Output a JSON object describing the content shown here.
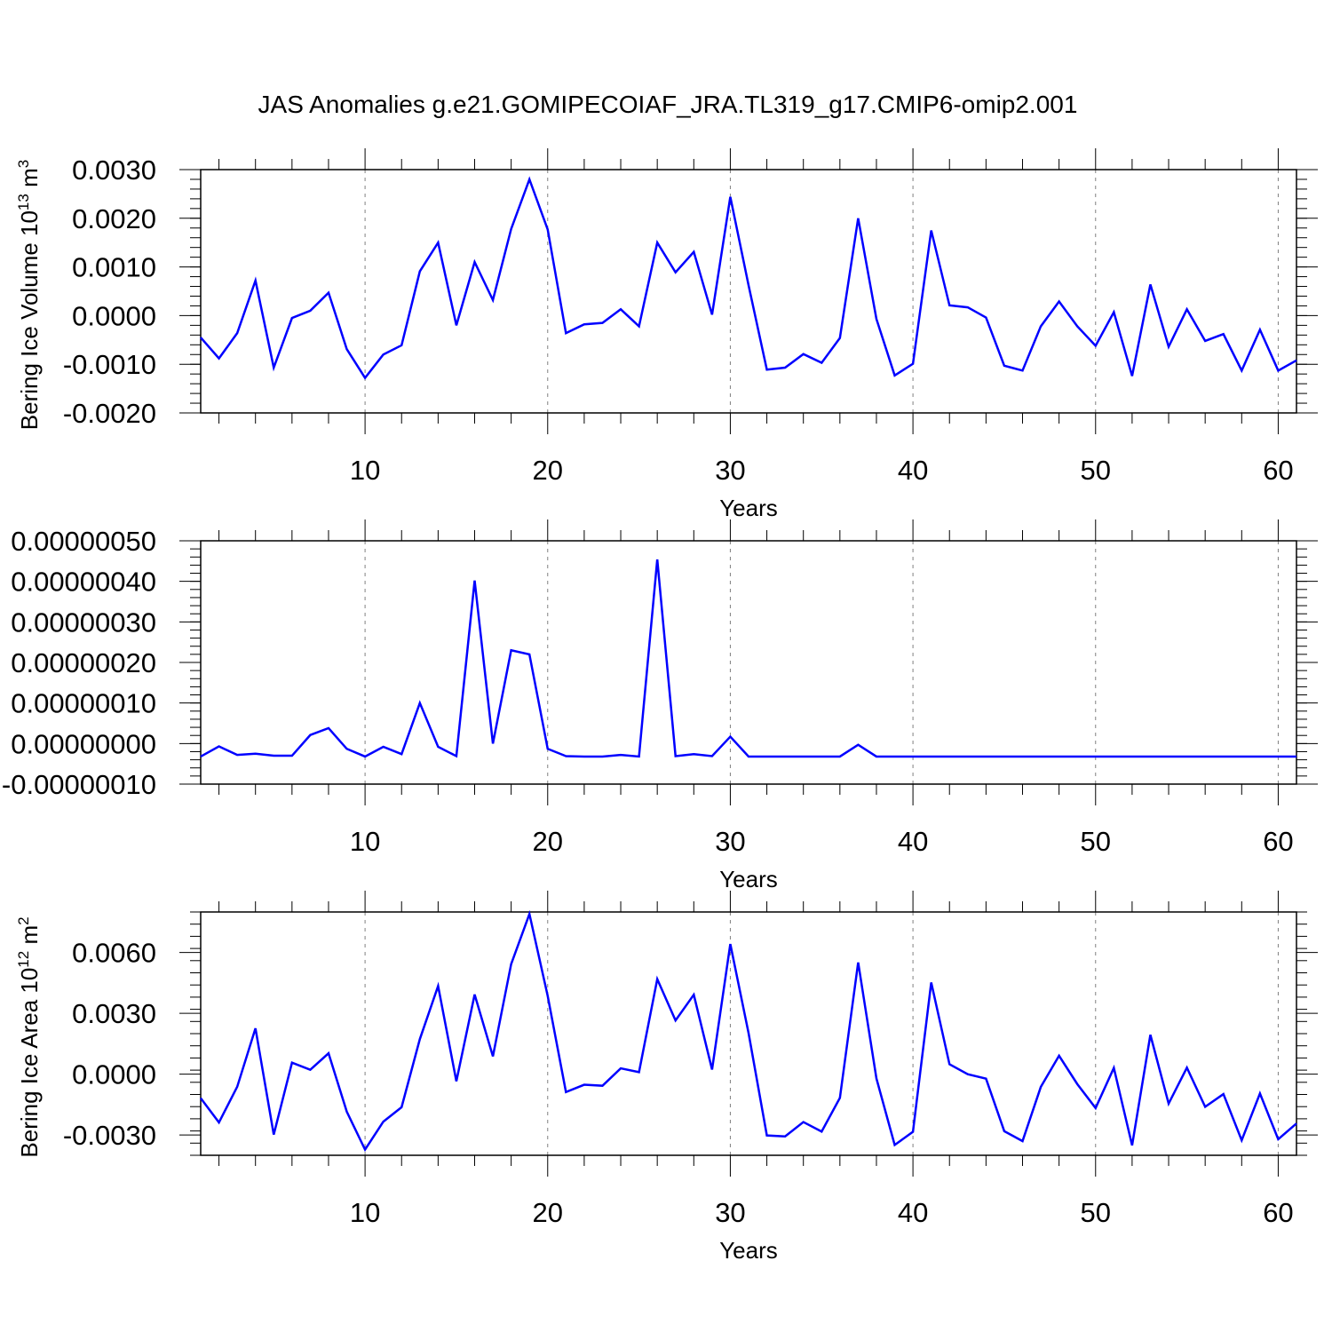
{
  "title": "JAS Anomalies g.e21.GOMIPECOIAF_JRA.TL319_g17.CMIP6-omip2.001",
  "colors": {
    "line": "#0000ff",
    "axis": "#000000",
    "grid": "#808080"
  },
  "chart_data": [
    {
      "type": "line",
      "ylabel": "Bering Ice Volume 10",
      "ylabel_exp": "13",
      "ylabel_unit": " m",
      "ylabel_unit_exp": "3",
      "xlabel": "Years",
      "xlim": [
        1,
        61
      ],
      "ylim": [
        -0.002,
        0.003
      ],
      "y_ticks": [
        -0.002,
        -0.001,
        0.0,
        0.001,
        0.002,
        0.003
      ],
      "y_tick_labels": [
        "-0.0020",
        "-0.0010",
        "0.0000",
        "0.0010",
        "0.0020",
        "0.0030"
      ],
      "x_ticks": [
        10,
        20,
        30,
        40,
        50,
        60
      ],
      "x_tick_labels": [
        "10",
        "20",
        "30",
        "40",
        "50",
        "60"
      ],
      "grid": "vertical dashed at x ticks",
      "series": [
        {
          "values": [
            -0.00045,
            -0.00088,
            -0.00036,
            0.00072,
            -0.00107,
            -5e-05,
            0.0001,
            0.00047,
            -0.00069,
            -0.00128,
            -0.0008,
            -0.00061,
            0.00091,
            0.0015,
            -0.0002,
            0.0011,
            0.00032,
            0.00178,
            0.0028,
            0.00177,
            -0.00036,
            -0.00018,
            -0.00015,
            0.00013,
            -0.00022,
            0.0015,
            0.00089,
            0.00131,
            2e-05,
            0.00244,
            0.00062,
            -0.00111,
            -0.00107,
            -0.00079,
            -0.00097,
            -0.00046,
            0.002,
            -7e-05,
            -0.00123,
            -0.00099,
            0.00175,
            0.00021,
            0.00017,
            -4e-05,
            -0.00103,
            -0.00113,
            -0.00022,
            0.00029,
            -0.00022,
            -0.00062,
            7e-05,
            -0.00124,
            0.00064,
            -0.00064,
            0.00013,
            -0.00052,
            -0.00038,
            -0.00113,
            -0.00029,
            -0.00113,
            -0.00092
          ]
        }
      ]
    },
    {
      "type": "line",
      "ylabel": "",
      "xlabel": "Years",
      "xlim": [
        1,
        61
      ],
      "ylim": [
        -1e-07,
        5e-07
      ],
      "y_ticks": [
        -1e-07,
        0.0,
        1e-07,
        2e-07,
        3e-07,
        4e-07,
        5e-07
      ],
      "y_tick_labels": [
        "-0.00000010",
        "0.00000000",
        "0.00000010",
        "0.00000020",
        "0.00000030",
        "0.00000040",
        "0.00000050"
      ],
      "x_ticks": [
        10,
        20,
        30,
        40,
        50,
        60
      ],
      "x_tick_labels": [
        "10",
        "20",
        "30",
        "40",
        "50",
        "60"
      ],
      "grid": "vertical dashed at x ticks",
      "series": [
        {
          "values": [
            -3.2e-08,
            -7e-09,
            -2.8e-08,
            -2.5e-08,
            -3e-08,
            -3e-08,
            2.1e-08,
            3.8e-08,
            -1.3e-08,
            -3.2e-08,
            -8e-09,
            -2.6e-08,
            1e-07,
            -8e-09,
            -3.1e-08,
            4.02e-07,
            0.0,
            2.3e-07,
            2.2e-07,
            -1.3e-08,
            -3.1e-08,
            -3.2e-08,
            -3.2e-08,
            -2.8e-08,
            -3.2e-08,
            4.54e-07,
            -3.1e-08,
            -2.6e-08,
            -3.1e-08,
            1.7e-08,
            -3.2e-08,
            -3.2e-08,
            -3.2e-08,
            -3.2e-08,
            -3.2e-08,
            -3.2e-08,
            -3e-09,
            -3.2e-08,
            -3.2e-08,
            -3.2e-08,
            -3.2e-08,
            -3.2e-08,
            -3.2e-08,
            -3.2e-08,
            -3.2e-08,
            -3.2e-08,
            -3.2e-08,
            -3.2e-08,
            -3.2e-08,
            -3.2e-08,
            -3.2e-08,
            -3.2e-08,
            -3.2e-08,
            -3.2e-08,
            -3.2e-08,
            -3.2e-08,
            -3.2e-08,
            -3.2e-08,
            -3.2e-08,
            -3.2e-08,
            -3.2e-08
          ]
        }
      ]
    },
    {
      "type": "line",
      "ylabel": "Bering Ice Area 10",
      "ylabel_exp": "12",
      "ylabel_unit": " m",
      "ylabel_unit_exp": "2",
      "xlabel": "Years",
      "xlim": [
        1,
        61
      ],
      "ylim": [
        -0.004,
        0.008
      ],
      "y_ticks": [
        -0.003,
        0.0,
        0.003,
        0.006
      ],
      "y_tick_labels": [
        "-0.0030",
        "0.0000",
        "0.0030",
        "0.0060"
      ],
      "x_ticks": [
        10,
        20,
        30,
        40,
        50,
        60
      ],
      "x_tick_labels": [
        "10",
        "20",
        "30",
        "40",
        "50",
        "60"
      ],
      "grid": "vertical dashed at x ticks",
      "series": [
        {
          "values": [
            -0.00118,
            -0.00238,
            -0.00062,
            0.00226,
            -0.00298,
            0.00057,
            0.00022,
            0.00103,
            -0.00185,
            -0.00372,
            -0.00234,
            -0.00163,
            0.00173,
            0.00435,
            -0.00035,
            0.00393,
            0.00088,
            0.00543,
            0.0079,
            0.00386,
            -0.00088,
            -0.00052,
            -0.00057,
            0.00029,
            0.0001,
            0.00469,
            0.00265,
            0.00392,
            0.00023,
            0.00642,
            0.00202,
            -0.00302,
            -0.00307,
            -0.00236,
            -0.00283,
            -0.00117,
            0.00551,
            -0.00021,
            -0.00349,
            -0.00284,
            0.00452,
            0.00049,
            0.0,
            -0.00022,
            -0.00281,
            -0.0033,
            -0.00063,
            0.00091,
            -0.00049,
            -0.00167,
            0.00031,
            -0.00351,
            0.00194,
            -0.00145,
            0.00032,
            -0.00161,
            -0.00098,
            -0.00326,
            -0.00095,
            -0.00321,
            -0.00243
          ]
        }
      ]
    }
  ]
}
